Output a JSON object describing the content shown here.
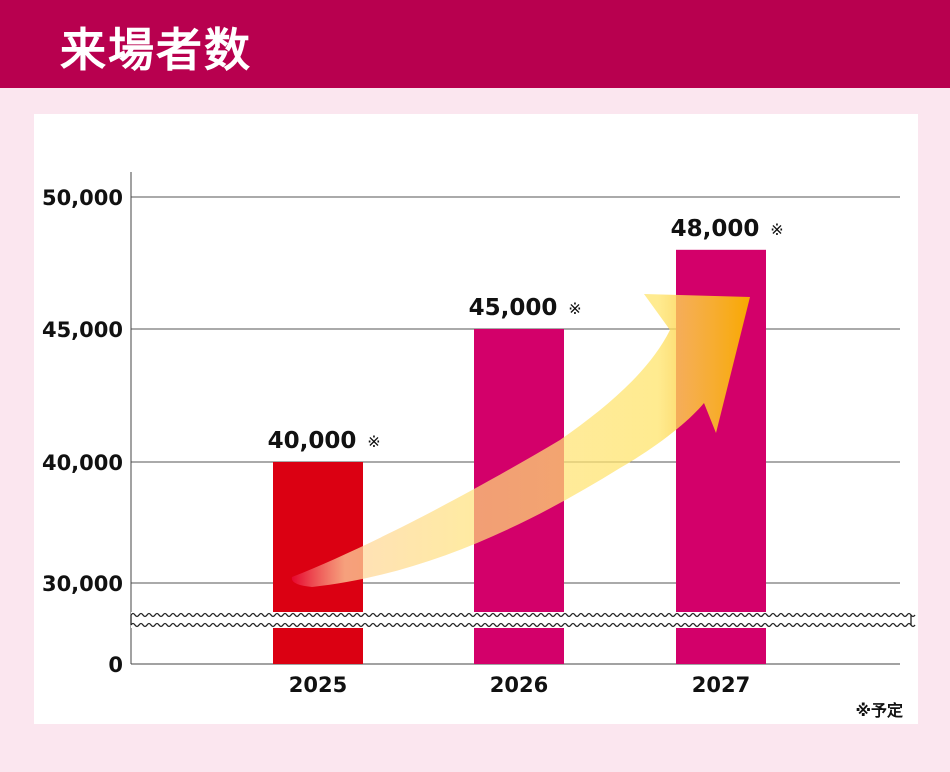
{
  "header": {
    "title": "来場者数"
  },
  "note": "※予定",
  "chart_data": {
    "type": "bar",
    "title": "来場者数",
    "categories": [
      "2025",
      "2026",
      "2027"
    ],
    "values": [
      40000,
      45000,
      48000
    ],
    "data_labels": [
      "40,000",
      "45,000",
      "48,000"
    ],
    "label_marks": [
      "※",
      "※",
      "※"
    ],
    "bar_colors": [
      "#db0012",
      "#d3006a",
      "#d3006a"
    ],
    "y_ticks": [
      {
        "value": 0,
        "label": "0"
      },
      {
        "value": 30000,
        "label": "30,000"
      },
      {
        "value": 40000,
        "label": "40,000"
      },
      {
        "value": 45000,
        "label": "45,000"
      },
      {
        "value": 50000,
        "label": "50,000"
      }
    ],
    "ylim": [
      0,
      50000
    ],
    "axis_break": [
      0,
      30000
    ],
    "grid": true,
    "trend_arrow": true
  }
}
